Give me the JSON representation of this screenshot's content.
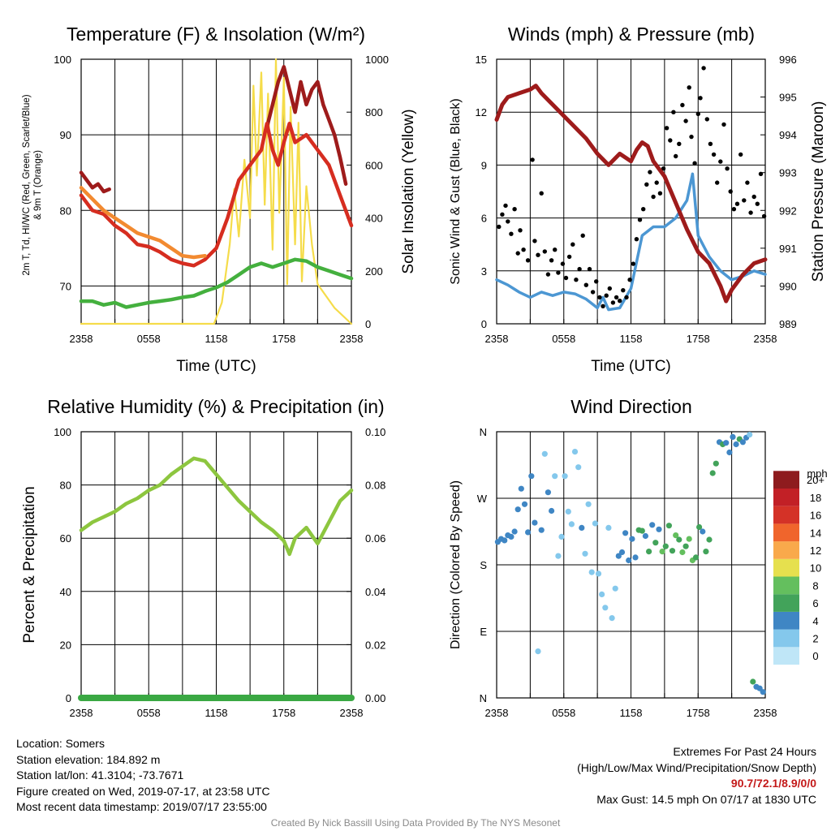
{
  "colors": {
    "maroon": "#9e1b1b",
    "red": "#d62d20",
    "scarlet_blue": "#9e1b1b",
    "orange": "#f28a30",
    "green": "#44b03e",
    "yellow": "#f5dc4a",
    "blue": "#4c97d3",
    "black": "#000000",
    "rh_green": "#8dc63f",
    "precip_green": "#3aa843"
  },
  "speed_colorbar": [
    "#bfe6f7",
    "#84c8ec",
    "#3f86c4",
    "#42a35a",
    "#64bf5e",
    "#e6e04e",
    "#f9a94b",
    "#f0652c",
    "#d43227",
    "#c22026",
    "#8e1b1e"
  ],
  "chart_data": [
    {
      "id": "temperature",
      "type": "line",
      "title": "Temperature (F) & Insolation (W/m²)",
      "xlabel": "Time (UTC)",
      "ylabel": "2m T, Td, HI/WC (Red, Green, Scarlet/Blue) & 9m T (Orange)",
      "y2label": "Solar Insolation (Yellow)",
      "x_ticks": [
        "2358",
        "0558",
        "1158",
        "1758",
        "2358"
      ],
      "xlim": [
        0,
        24
      ],
      "ylim": [
        65,
        100
      ],
      "y_ticks": [
        70,
        80,
        90,
        100
      ],
      "y2lim": [
        0,
        1000
      ],
      "y2_ticks": [
        0,
        200,
        400,
        600,
        800,
        1000
      ],
      "series": [
        {
          "axis": "y2",
          "color": "yellow",
          "x": [
            0,
            3,
            6,
            9,
            11.8,
            12.5,
            13.2,
            13.6,
            14.0,
            14.5,
            15.0,
            15.3,
            15.6,
            16.0,
            16.3,
            16.6,
            17.0,
            17.3,
            17.6,
            18.0,
            18.3,
            18.6,
            19.0,
            19.3,
            19.6,
            20.0,
            20.5,
            21.0,
            21.5,
            22.5,
            23.5,
            24
          ],
          "y": [
            0,
            0,
            0,
            0,
            0,
            80,
            300,
            510,
            330,
            620,
            400,
            900,
            560,
            950,
            450,
            870,
            280,
            1000,
            420,
            930,
            150,
            820,
            300,
            760,
            160,
            520,
            300,
            150,
            120,
            60,
            20,
            0
          ]
        },
        {
          "axis": "y",
          "color": "maroon",
          "x": [
            16.5,
            17.0,
            17.5,
            18.0,
            18.5,
            19.0,
            19.5,
            20.0,
            20.5,
            21.0,
            21.5,
            22.0,
            22.5,
            23.0,
            23.5
          ],
          "y": [
            91,
            94,
            97,
            99,
            96,
            93,
            97,
            94,
            96,
            97,
            94,
            92,
            90,
            87,
            83.5
          ]
        },
        {
          "axis": "y",
          "color": "maroon",
          "x": [
            0,
            0.5,
            1.0,
            1.5,
            2.0,
            2.5
          ],
          "y": [
            85,
            84,
            83,
            83.5,
            82.5,
            82.8
          ]
        },
        {
          "axis": "y",
          "color": "red",
          "x": [
            0,
            1,
            2,
            3,
            4,
            5,
            6,
            7,
            8,
            9,
            10,
            11,
            12,
            13,
            14,
            15,
            16,
            16.5,
            17,
            17.5,
            18,
            18.5,
            19,
            20,
            21,
            22,
            23,
            24
          ],
          "y": [
            82,
            80,
            79.5,
            78,
            77,
            75.5,
            75.2,
            74.5,
            73.5,
            73,
            72.7,
            73.5,
            75,
            79,
            84,
            86,
            88,
            91.5,
            88,
            86,
            89,
            91.5,
            89,
            90,
            88,
            86,
            82,
            78
          ]
        },
        {
          "axis": "y",
          "color": "orange",
          "x": [
            0,
            1,
            2,
            3,
            4,
            5,
            6,
            7,
            8,
            9,
            10,
            11
          ],
          "y": [
            83,
            81.5,
            80,
            79,
            78,
            77,
            76.5,
            76,
            75,
            74,
            73.8,
            74
          ]
        },
        {
          "axis": "y",
          "color": "green",
          "x": [
            0,
            1,
            2,
            3,
            4,
            5,
            6,
            7,
            8,
            9,
            10,
            11,
            12,
            13,
            14,
            15,
            16,
            17,
            18,
            19,
            20,
            21,
            22,
            23,
            24
          ],
          "y": [
            68,
            68,
            67.5,
            67.8,
            67.2,
            67.5,
            67.8,
            68,
            68.2,
            68.5,
            68.7,
            69.3,
            69.8,
            70.5,
            71.5,
            72.5,
            73,
            72.5,
            73,
            73.5,
            73.3,
            72.5,
            72,
            71.5,
            71
          ]
        }
      ]
    },
    {
      "id": "winds",
      "type": "line",
      "title": "Winds (mph) & Pressure (mb)",
      "xlabel": "Time (UTC)",
      "ylabel": "Sonic Wind & Gust (Blue, Black)",
      "y2label": "Station Pressure (Maroon)",
      "x_ticks": [
        "2358",
        "0558",
        "1158",
        "1758",
        "2358"
      ],
      "xlim": [
        0,
        24
      ],
      "ylim": [
        0,
        15
      ],
      "y_ticks": [
        0,
        3,
        6,
        9,
        12,
        15
      ],
      "y2lim": [
        989,
        996
      ],
      "y2_ticks": [
        989,
        990,
        991,
        992,
        993,
        994,
        995,
        996
      ],
      "series": [
        {
          "axis": "y",
          "color": "blue",
          "name": "wind",
          "x": [
            0,
            1,
            2,
            3,
            4,
            5,
            6,
            7,
            8,
            9,
            9.5,
            10,
            11,
            12,
            13,
            14,
            15,
            16,
            17,
            17.5,
            18,
            19,
            20,
            21,
            22,
            23,
            24
          ],
          "y": [
            2.5,
            2.2,
            1.8,
            1.5,
            1.8,
            1.6,
            1.8,
            1.7,
            1.4,
            0.9,
            1.5,
            0.8,
            0.9,
            2.0,
            5.0,
            5.5,
            5.5,
            6.0,
            7.0,
            8.5,
            5.0,
            3.8,
            3.0,
            2.5,
            2.7,
            3.0,
            2.8
          ]
        },
        {
          "axis": "y2",
          "color": "maroon",
          "name": "pressure",
          "x": [
            0,
            0.5,
            1,
            2,
            3,
            3.5,
            4,
            5,
            6,
            7,
            8,
            9,
            10,
            11,
            11.5,
            12,
            12.5,
            13,
            13.5,
            14,
            15,
            16,
            17,
            18,
            19,
            20,
            20.5,
            21,
            22,
            23,
            24
          ],
          "y": [
            994.4,
            994.8,
            995.0,
            995.1,
            995.2,
            995.3,
            995.1,
            994.8,
            994.5,
            994.2,
            993.9,
            993.5,
            993.2,
            993.5,
            993.4,
            993.3,
            993.6,
            993.8,
            993.7,
            993.3,
            992.9,
            992.2,
            991.5,
            990.9,
            990.6,
            990.0,
            989.6,
            989.9,
            990.3,
            990.6,
            990.7
          ]
        }
      ],
      "gust_points": {
        "x": [
          0.2,
          0.5,
          0.8,
          1.0,
          1.3,
          1.6,
          1.9,
          2.1,
          2.4,
          2.8,
          3.2,
          3.4,
          3.7,
          4.0,
          4.3,
          4.6,
          4.9,
          5.2,
          5.5,
          5.9,
          6.2,
          6.5,
          6.8,
          7.1,
          7.4,
          7.7,
          8.0,
          8.3,
          8.6,
          8.9,
          9.2,
          9.5,
          9.8,
          10.1,
          10.4,
          10.7,
          11.0,
          11.3,
          11.6,
          11.9,
          12.2,
          12.5,
          12.8,
          13.1,
          13.4,
          13.7,
          14.0,
          14.3,
          14.6,
          14.9,
          15.2,
          15.5,
          15.8,
          16.0,
          16.3,
          16.6,
          16.9,
          17.2,
          17.4,
          17.7,
          18.0,
          18.2,
          18.5,
          18.8,
          19.1,
          19.4,
          19.7,
          20.0,
          20.3,
          20.6,
          20.9,
          21.2,
          21.5,
          21.8,
          22.1,
          22.4,
          22.7,
          23.0,
          23.3,
          23.6,
          23.9
        ],
        "y": [
          5.5,
          6.2,
          6.7,
          5.8,
          5.1,
          6.5,
          4.0,
          5.3,
          4.2,
          3.6,
          9.3,
          4.7,
          3.9,
          7.4,
          4.1,
          2.8,
          3.6,
          4.2,
          2.9,
          3.4,
          2.6,
          3.8,
          4.5,
          2.5,
          3.1,
          5.0,
          2.2,
          3.1,
          1.8,
          2.4,
          1.5,
          1.0,
          1.6,
          2.0,
          1.2,
          1.5,
          1.3,
          1.9,
          1.5,
          2.5,
          3.4,
          4.8,
          5.9,
          6.5,
          7.9,
          8.6,
          7.2,
          8.0,
          7.4,
          8.8,
          11.1,
          10.4,
          12.0,
          9.5,
          10.2,
          12.4,
          11.5,
          13.4,
          10.6,
          9.1,
          11.9,
          12.8,
          14.5,
          11.6,
          10.2,
          9.6,
          8.0,
          9.2,
          11.3,
          8.8,
          7.5,
          6.5,
          6.8,
          9.6,
          7.0,
          8.0,
          6.3,
          7.2,
          6.8,
          8.5,
          6.1
        ]
      }
    },
    {
      "id": "humidity",
      "type": "line",
      "title": "Relative Humidity (%) & Precipitation (in)",
      "xlabel": "",
      "ylabel": "Percent & Precipitation",
      "x_ticks": [
        "2358",
        "0558",
        "1158",
        "1758",
        "2358"
      ],
      "xlim": [
        0,
        24
      ],
      "ylim": [
        0,
        100
      ],
      "y_ticks": [
        0,
        20,
        40,
        60,
        80,
        100
      ],
      "y2lim": [
        0,
        0.1
      ],
      "y2_ticks": [
        "0.00",
        "0.02",
        "0.04",
        "0.06",
        "0.08",
        "0.10"
      ],
      "series": [
        {
          "axis": "y",
          "color": "rh_green",
          "x": [
            0,
            1,
            2,
            3,
            4,
            5,
            6,
            7,
            8,
            9,
            10,
            11,
            12,
            13,
            14,
            15,
            16,
            17,
            18,
            18.5,
            19,
            20,
            21,
            22,
            23,
            24
          ],
          "y": [
            63,
            66,
            68,
            70,
            73,
            75,
            78,
            80,
            84,
            87,
            90,
            89,
            84,
            79,
            74,
            70,
            66,
            63,
            59,
            54,
            60,
            64,
            58,
            66,
            74,
            78
          ]
        },
        {
          "axis": "y2",
          "color": "precip_green",
          "x": [
            0,
            24
          ],
          "y": [
            0,
            0
          ]
        }
      ]
    },
    {
      "id": "wind_direction",
      "type": "scatter",
      "title": "Wind Direction",
      "ylabel": "Direction (Colored By Speed)",
      "x_ticks": [
        "2358",
        "0558",
        "1158",
        "1758",
        "2358"
      ],
      "xlim": [
        0,
        24
      ],
      "ylim": [
        0,
        360
      ],
      "y_ticks": [
        {
          "value": 0,
          "label": "N"
        },
        {
          "value": 90,
          "label": "E"
        },
        {
          "value": 180,
          "label": "S"
        },
        {
          "value": 270,
          "label": "W"
        },
        {
          "value": 360,
          "label": "N"
        }
      ],
      "colorbar_title": "mph",
      "colorbar_labels": [
        "0",
        "2",
        "4",
        "6",
        "8",
        "10",
        "12",
        "14",
        "16",
        "18",
        "20+"
      ],
      "points": {
        "x": [
          0.1,
          0.4,
          0.7,
          1.0,
          1.3,
          1.6,
          1.9,
          2.2,
          2.5,
          2.8,
          3.1,
          3.4,
          3.7,
          4.0,
          4.3,
          4.6,
          4.9,
          5.2,
          5.5,
          5.8,
          6.1,
          6.4,
          6.7,
          7.0,
          7.3,
          7.6,
          7.9,
          8.2,
          8.5,
          8.8,
          9.1,
          9.4,
          9.7,
          10.0,
          10.3,
          10.6,
          10.9,
          11.2,
          11.5,
          11.8,
          12.1,
          12.4,
          12.7,
          13.0,
          13.3,
          13.6,
          13.9,
          14.2,
          14.5,
          14.8,
          15.1,
          15.4,
          15.7,
          16.0,
          16.3,
          16.6,
          16.9,
          17.2,
          17.5,
          17.8,
          18.1,
          18.4,
          18.7,
          19.0,
          19.3,
          19.6,
          19.9,
          20.2,
          20.5,
          20.8,
          21.1,
          21.4,
          21.7,
          22.0,
          22.3,
          22.6,
          22.9,
          23.2,
          23.5,
          23.8
        ],
        "y": [
          211,
          215,
          213,
          220,
          218,
          225,
          255,
          283,
          262,
          224,
          300,
          237,
          63,
          227,
          330,
          278,
          253,
          300,
          192,
          218,
          300,
          252,
          235,
          333,
          312,
          230,
          195,
          262,
          170,
          236,
          168,
          140,
          122,
          230,
          108,
          148,
          192,
          197,
          223,
          186,
          215,
          190,
          227,
          226,
          219,
          198,
          234,
          210,
          228,
          198,
          205,
          233,
          199,
          220,
          214,
          197,
          205,
          215,
          186,
          190,
          231,
          225,
          198,
          214,
          304,
          317,
          346,
          343,
          345,
          332,
          353,
          343,
          350,
          346,
          352,
          356,
          22,
          15,
          13,
          8
        ],
        "speed": [
          2.5,
          3.1,
          2.8,
          3.2,
          2.9,
          2.6,
          2.9,
          3.4,
          3.0,
          2.4,
          2.2,
          2.6,
          1.3,
          2.7,
          1.5,
          2.1,
          2.3,
          1.8,
          1.4,
          1.6,
          1.5,
          1.8,
          1.9,
          1.2,
          1.0,
          2.2,
          1.5,
          0.8,
          1.9,
          0.9,
          1.3,
          1.6,
          1.0,
          0.5,
          1.1,
          1.0,
          2.8,
          2.3,
          3.7,
          2.9,
          3.8,
          3.4,
          4.1,
          5.1,
          3.4,
          4.5,
          3.7,
          4.9,
          3.9,
          6.5,
          5.6,
          4.4,
          6.0,
          6.8,
          5.1,
          6.2,
          4.7,
          6.1,
          7.1,
          6.0,
          4.1,
          3.6,
          4.7,
          4.2,
          4.5,
          4.1,
          3.3,
          4.4,
          3.6,
          3.9,
          3.2,
          3.5,
          4.3,
          3.4,
          3.8,
          2.0,
          4.4,
          3.7,
          3.4,
          2.8
        ]
      }
    }
  ],
  "footer": {
    "location": "Location: Somers",
    "elevation": "Station elevation: 184.892 m",
    "latlon": "Station lat/lon: 41.3104; -73.7671",
    "created": "Figure created on Wed, 2019-07-17, at 23:58 UTC",
    "recent": "Most recent data timestamp: 2019/07/17 23:55:00",
    "extremes_title": "Extremes For Past 24 Hours",
    "extremes_fields": "(High/Low/Max Wind/Precipitation/Snow Depth)",
    "extremes_values": "90.7/72.1/8.9/0/0",
    "max_gust": "Max Gust: 14.5 mph On 07/17 at 1830 UTC",
    "credit": "Created By Nick Bassill Using Data Provided By The NYS Mesonet"
  }
}
